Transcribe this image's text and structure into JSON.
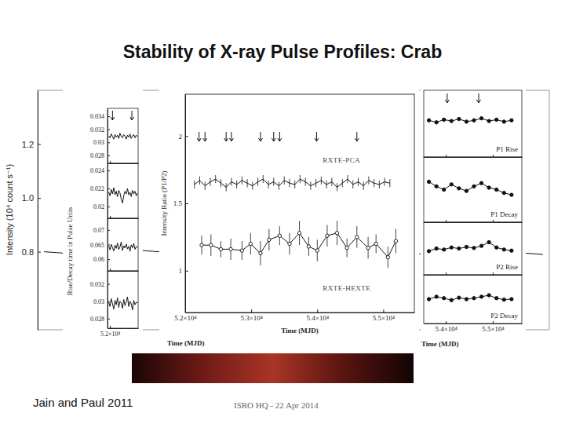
{
  "slide": {
    "title": "Stability of X-ray Pulse Profiles: Crab",
    "footer_left": "Jain and Paul 2011",
    "footer_center": "ISRO HQ - 22 Apr 2014"
  },
  "chart_data": [
    {
      "type": "line",
      "y_label": "Intensity (10⁴ count s⁻¹)",
      "xlim": [
        51800,
        55800
      ],
      "ylim": [
        0.51,
        1.4
      ],
      "yticks": [
        0.8,
        {
          "value": 1,
          "label": "1.0"
        },
        1.2
      ],
      "tick_labels": "y",
      "color": "#111111",
      "x": [
        51850,
        52150,
        52450,
        52750,
        53050,
        53350,
        53650,
        53950,
        54250,
        54550,
        54850,
        55150,
        55450,
        55750
      ],
      "values": [
        0.8,
        0.79,
        0.81,
        0.8,
        0.79,
        0.8,
        0.81,
        0.79,
        0.8,
        0.8,
        0.79,
        0.81,
        0.8,
        0.79
      ]
    },
    {
      "type": "line",
      "y_label": "Rise/Decay time in Pulse Units",
      "x_label": "Time (MJD)",
      "xlim": [
        51960,
        52450
      ],
      "xticks": [
        {
          "value": 52000,
          "label": "5.2×10⁴"
        }
      ],
      "arrows": [
        52040,
        52350
      ],
      "color": "#111111",
      "x": [
        51980,
        52000,
        52020,
        52040,
        52060,
        52080,
        52100,
        52120,
        52140,
        52160,
        52180,
        52200,
        52220,
        52240,
        52260,
        52280,
        52300,
        52320,
        52340,
        52360,
        52380,
        52400,
        52420,
        52440
      ],
      "panels": [
        {
          "ylim": [
            0.0268,
            0.0352
          ],
          "yticks": [
            0.034,
            0.032,
            0.03,
            0.028
          ],
          "values": [
            0.031,
            0.0307,
            0.0313,
            0.0309,
            0.0305,
            0.0312,
            0.0308,
            0.0311,
            0.0306,
            0.0314,
            0.0309,
            0.0307,
            0.0312,
            0.031,
            0.0305,
            0.0311,
            0.0308,
            0.0313,
            0.0306,
            0.031,
            0.0312,
            0.0307,
            0.0311,
            0.0309
          ]
        },
        {
          "ylim": [
            0.0187,
            0.0248
          ],
          "yticks": [
            0.024,
            0.022,
            0.02
          ],
          "values": [
            0.0216,
            0.0212,
            0.0219,
            0.0214,
            0.0221,
            0.0213,
            0.0217,
            0.0211,
            0.0218,
            0.0215,
            0.0208,
            0.0204,
            0.0212,
            0.0217,
            0.0214,
            0.022,
            0.0213,
            0.0216,
            0.0211,
            0.0218,
            0.0214,
            0.0217,
            0.0212,
            0.0215
          ]
        },
        {
          "ylim": [
            0.056,
            0.074
          ],
          "yticks": [
            0.07,
            0.065,
            0.06
          ],
          "values": [
            0.0645,
            0.0632,
            0.0651,
            0.064,
            0.0628,
            0.0648,
            0.0637,
            0.0655,
            0.0633,
            0.0642,
            0.0659,
            0.063,
            0.0646,
            0.0638,
            0.0652,
            0.0635,
            0.0644,
            0.0627,
            0.0649,
            0.0639,
            0.0654,
            0.0634,
            0.0643,
            0.0641
          ]
        },
        {
          "ylim": [
            0.0269,
            0.0335
          ],
          "yticks": [
            0.032,
            0.03,
            0.028
          ],
          "values": [
            0.0299,
            0.0294,
            0.0303,
            0.0297,
            0.0291,
            0.0301,
            0.0296,
            0.0304,
            0.0293,
            0.03,
            0.0298,
            0.0292,
            0.0302,
            0.0295,
            0.0299,
            0.0305,
            0.0294,
            0.03,
            0.0297,
            0.029,
            0.0301,
            0.0296,
            0.0299,
            0.0298
          ]
        }
      ]
    },
    {
      "type": "line",
      "x_label": "Time (MJD)",
      "y_label": "Intensity Ratio (P1/P2)",
      "xlim": [
        52000,
        55470
      ],
      "ylim": [
        0.69,
        2.31
      ],
      "xticks": [
        {
          "value": 52000,
          "label": "5.2×10⁴"
        },
        {
          "value": 53000,
          "label": "5.3×10⁴"
        },
        {
          "value": 54000,
          "label": "5.4×10⁴"
        },
        {
          "value": 55000,
          "label": "5.5×10⁴"
        }
      ],
      "yticks": [
        1,
        1.5,
        2
      ],
      "arrows": [
        52210,
        52300,
        52620,
        52700,
        53140,
        53340,
        53430,
        53990,
        54600
      ],
      "color": "#111111",
      "series": [
        {
          "name": "RXTE-PCA",
          "marker": "none",
          "x": [
            52140,
            52220,
            52300,
            52380,
            52460,
            52540,
            52620,
            52700,
            52780,
            52860,
            52940,
            53020,
            53100,
            53180,
            53260,
            53340,
            53420,
            53500,
            53580,
            53660,
            53740,
            53820,
            53900,
            53980,
            54060,
            54140,
            54220,
            54300,
            54380,
            54460,
            54540,
            54620,
            54700,
            54780,
            54860,
            54940,
            55020,
            55100
          ],
          "values": [
            1.64,
            1.67,
            1.63,
            1.66,
            1.68,
            1.65,
            1.62,
            1.66,
            1.64,
            1.67,
            1.65,
            1.63,
            1.66,
            1.68,
            1.64,
            1.66,
            1.63,
            1.67,
            1.65,
            1.64,
            1.68,
            1.66,
            1.63,
            1.65,
            1.67,
            1.64,
            1.66,
            1.62,
            1.65,
            1.68,
            1.64,
            1.66,
            1.63,
            1.67,
            1.65,
            1.64,
            1.66,
            1.65
          ],
          "errors": [
            0.03,
            0.03,
            0.03,
            0.03,
            0.03,
            0.03,
            0.03,
            0.03,
            0.03,
            0.03,
            0.03,
            0.03,
            0.03,
            0.03,
            0.03,
            0.03,
            0.03,
            0.03,
            0.03,
            0.03,
            0.03,
            0.03,
            0.03,
            0.03,
            0.03,
            0.03,
            0.03,
            0.03,
            0.03,
            0.03,
            0.03,
            0.03,
            0.03,
            0.03,
            0.03,
            0.03,
            0.03,
            0.03
          ]
        },
        {
          "name": "RXTE-HEXTE",
          "marker": "open-circle",
          "x": [
            52250,
            52390,
            52540,
            52690,
            52860,
            52990,
            53140,
            53270,
            53430,
            53580,
            53730,
            53870,
            54000,
            54150,
            54300,
            54450,
            54600,
            54770,
            54890,
            55070,
            55190
          ],
          "values": [
            1.19,
            1.19,
            1.16,
            1.16,
            1.15,
            1.2,
            1.13,
            1.23,
            1.26,
            1.2,
            1.28,
            1.18,
            1.15,
            1.26,
            1.28,
            1.17,
            1.25,
            1.17,
            1.2,
            1.1,
            1.22
          ],
          "errors": [
            0.07,
            0.08,
            0.06,
            0.08,
            0.07,
            0.08,
            0.09,
            0.08,
            0.07,
            0.08,
            0.09,
            0.07,
            0.08,
            0.08,
            0.09,
            0.07,
            0.08,
            0.08,
            0.07,
            0.08,
            0.09
          ]
        }
      ]
    },
    {
      "type": "line",
      "x_label": "Time (MJD)",
      "xlim": [
        53530,
        55620
      ],
      "xticks": [
        {
          "value": 54000,
          "label": "5.4×10⁴"
        },
        {
          "value": 55000,
          "label": "5.5×10⁴"
        }
      ],
      "tick_labels": "x",
      "marker": "circle",
      "color": "#111111",
      "arrows": [
        54030,
        54700
      ],
      "x": [
        53640,
        53800,
        53960,
        54120,
        54280,
        54440,
        54600,
        54760,
        54920,
        55080,
        55240,
        55400
      ],
      "panels": [
        {
          "label": "P1 Rise",
          "ylim": [
            0,
            1
          ],
          "values": [
            0.55,
            0.52,
            0.56,
            0.54,
            0.57,
            0.53,
            0.55,
            0.58,
            0.54,
            0.56,
            0.53,
            0.55
          ]
        },
        {
          "label": "P1 Decay",
          "ylim": [
            0,
            1
          ],
          "values": [
            0.62,
            0.55,
            0.5,
            0.58,
            0.52,
            0.48,
            0.55,
            0.6,
            0.53,
            0.5,
            0.45,
            0.42
          ]
        },
        {
          "label": "P2 Rise",
          "ylim": [
            0,
            1
          ],
          "values": [
            0.45,
            0.5,
            0.48,
            0.52,
            0.5,
            0.53,
            0.51,
            0.55,
            0.62,
            0.52,
            0.48,
            0.46
          ]
        },
        {
          "label": "P2 Decay",
          "ylim": [
            0,
            1
          ],
          "values": [
            0.5,
            0.55,
            0.52,
            0.48,
            0.53,
            0.5,
            0.52,
            0.55,
            0.58,
            0.52,
            0.49,
            0.5
          ]
        }
      ]
    }
  ]
}
